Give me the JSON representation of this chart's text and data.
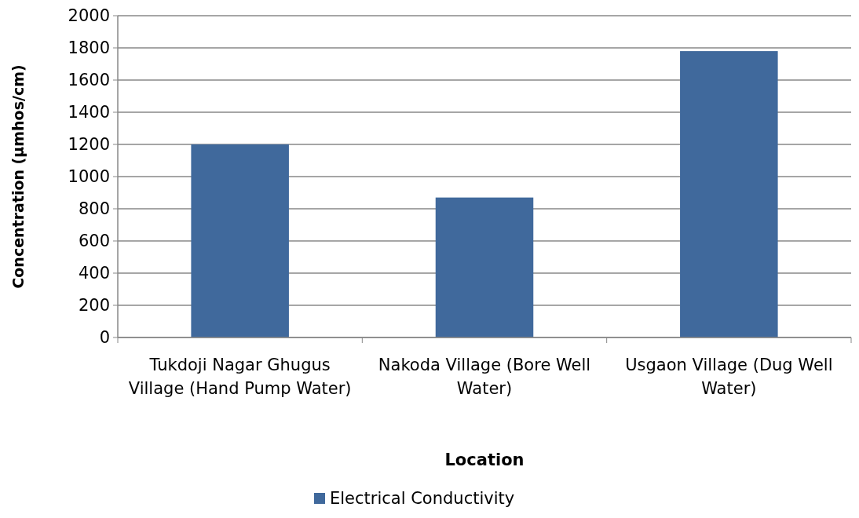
{
  "chart_data": {
    "type": "bar",
    "xlabel": "Location",
    "ylabel": "Concentration (µmhos/cm)",
    "categories": [
      "Tukdoji Nagar Ghugus Village (Hand Pump Water)",
      "Nakoda Village (Bore Well Water)",
      "Usgaon Village (Dug Well Water)"
    ],
    "series": [
      {
        "name": "Electrical Conductivity",
        "color": "#40699c",
        "values": [
          1200,
          870,
          1780
        ]
      }
    ],
    "ylim": [
      0,
      2000
    ],
    "yticks": [
      0,
      200,
      400,
      600,
      800,
      1000,
      1200,
      1400,
      1600,
      1800,
      2000
    ],
    "grid": "y",
    "legend": "bottom"
  }
}
